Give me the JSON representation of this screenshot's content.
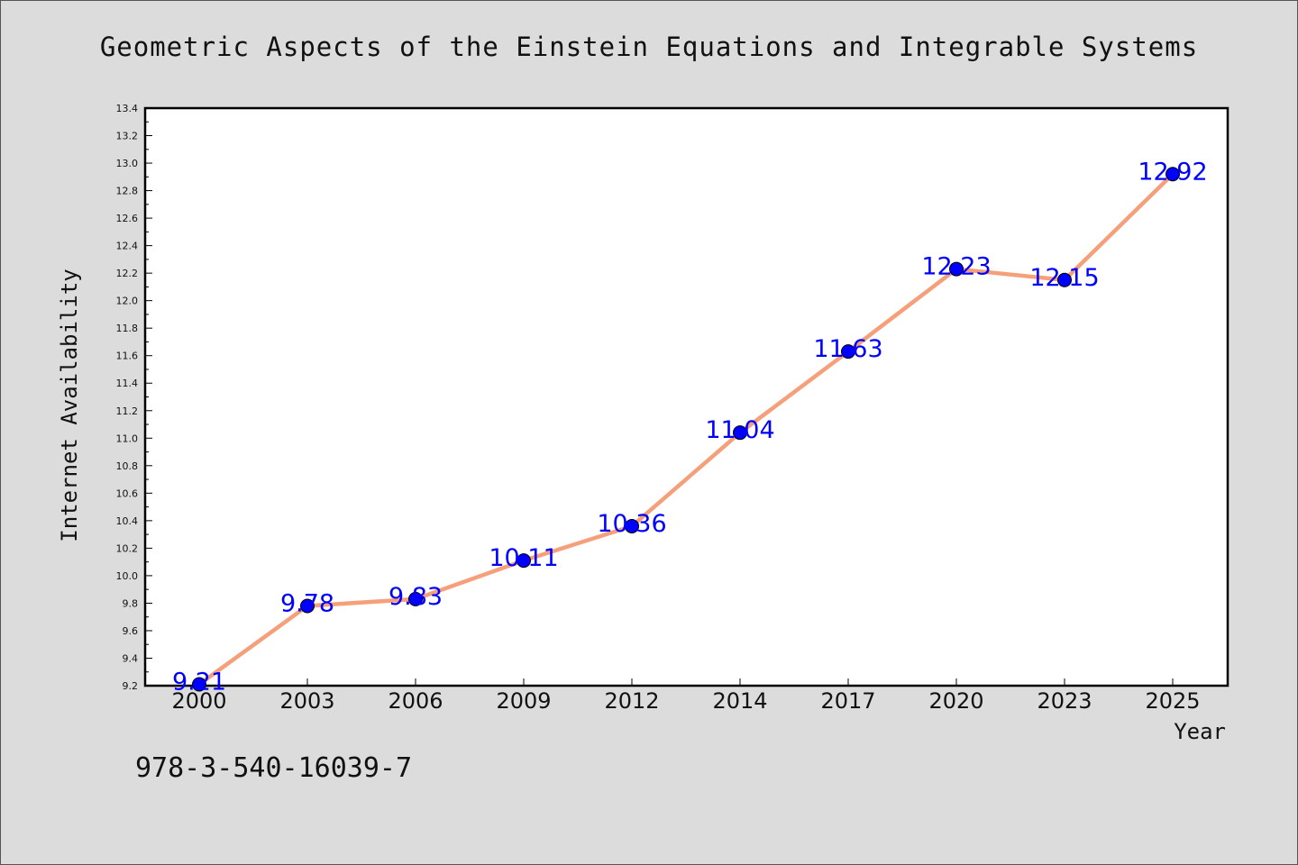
{
  "header": {
    "title": "Geometric Aspects of the Einstein Equations and Integrable Systems"
  },
  "footer": {
    "isbn": "978-3-540-16039-7"
  },
  "chart_data": {
    "type": "line",
    "title": "Geometric Aspects of the Einstein Equations and Integrable Systems",
    "xlabel": "Year",
    "ylabel": "Internet Availability",
    "categories": [
      "2000",
      "2003",
      "2006",
      "2009",
      "2012",
      "2014",
      "2017",
      "2020",
      "2023",
      "2025"
    ],
    "series": [
      {
        "values": [
          9.21,
          9.78,
          9.83,
          10.11,
          10.36,
          11.04,
          11.63,
          12.23,
          12.15,
          12.92
        ]
      }
    ],
    "data_labels": [
      "9.21",
      "9.78",
      "9.83",
      "10.11",
      "10.36",
      "11.04",
      "11.63",
      "12.23",
      "12.15",
      "12.92"
    ],
    "ylim": [
      9.2,
      13.4
    ],
    "yticks": [
      "9.2",
      "9.4",
      "9.6",
      "9.8",
      "10.0",
      "10.2",
      "10.4",
      "10.6",
      "10.8",
      "11.0",
      "11.2",
      "11.4",
      "11.6",
      "11.8",
      "12.0",
      "12.2",
      "12.4",
      "12.6",
      "12.8",
      "13.0",
      "13.2",
      "13.4"
    ],
    "grid": false,
    "line_color": "#f5a07a",
    "marker_color": "#0000ff",
    "label_color": "#0000ff"
  }
}
